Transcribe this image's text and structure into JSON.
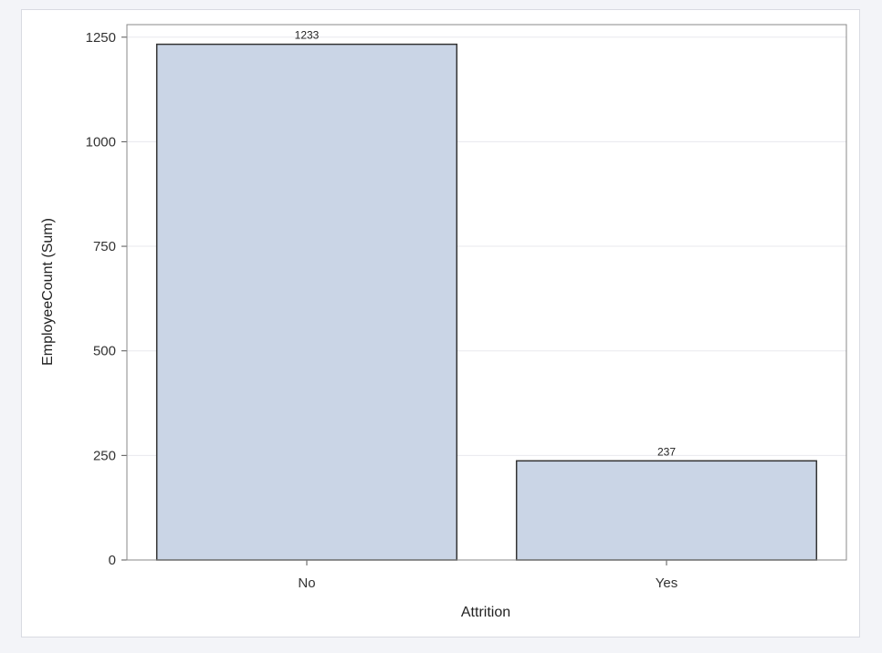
{
  "chart_data": {
    "type": "bar",
    "title": "",
    "xlabel": "Attrition",
    "ylabel": "EmployeeCount (Sum)",
    "categories": [
      "No",
      "Yes"
    ],
    "values": [
      1233,
      237
    ],
    "data_labels": [
      "1233",
      "237"
    ],
    "ylim": [
      0,
      1280
    ],
    "yticks": [
      0,
      250,
      500,
      750,
      1000,
      1250
    ],
    "ytick_labels": [
      "0",
      "250",
      "500",
      "750",
      "1000",
      "1250"
    ],
    "grid": true,
    "bar_fill": "#cad5e6",
    "bar_stroke": "#333333",
    "grid_color": "#e8e8ee"
  }
}
